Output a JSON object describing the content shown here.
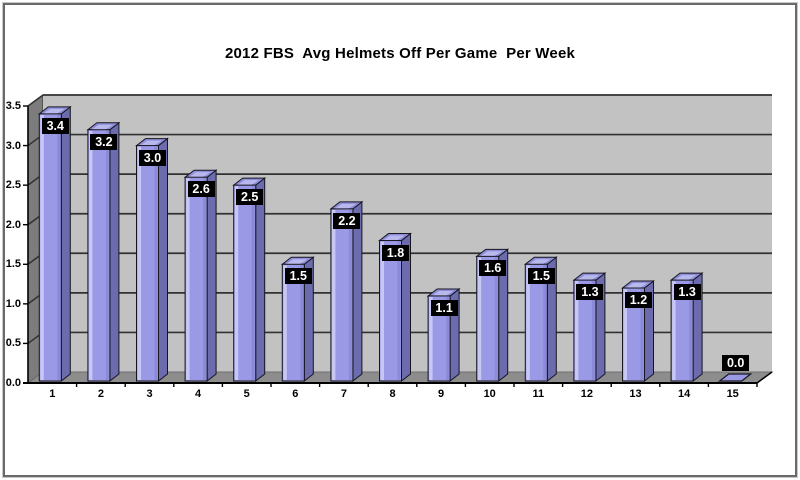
{
  "chart_data": {
    "type": "bar",
    "projection": "3d",
    "title": "2012 FBS  Avg Helmets Off Per Game  Per Week",
    "categories": [
      "1",
      "2",
      "3",
      "4",
      "5",
      "6",
      "7",
      "8",
      "9",
      "10",
      "11",
      "12",
      "13",
      "14",
      "15"
    ],
    "values": [
      3.4,
      3.2,
      3.0,
      2.6,
      2.5,
      1.5,
      2.2,
      1.8,
      1.1,
      1.6,
      1.5,
      1.3,
      1.2,
      1.3,
      0.0
    ],
    "data_labels": [
      "3.4",
      "3.2",
      "3.0",
      "2.6",
      "2.5",
      "1.5",
      "2.2",
      "1.8",
      "1.1",
      "1.6",
      "1.5",
      "1.3",
      "1.2",
      "1.3",
      "0.0"
    ],
    "xlabel": "",
    "ylabel": "",
    "ylim": [
      0,
      3.5
    ],
    "ytick_step": 0.5,
    "yticks": [
      "0.0",
      "0.5",
      "1.0",
      "1.5",
      "2.0",
      "2.5",
      "3.0",
      "3.5"
    ],
    "grid": true,
    "legend": false,
    "colors": {
      "bar_front": "#9a99e6",
      "bar_front_highlight": "#c8c7f4",
      "bar_front_shade": "#8b8ad8",
      "bar_side": "#6b6bae",
      "bar_top": "#8e8dd8",
      "bar_top_highlight": "#b9b8ec",
      "bar_outline": "#16161f",
      "back_wall": "#c2c2c2",
      "side_wall": "#7c7c7c",
      "floor": "#8d8d8d",
      "gridline": "#313131",
      "axis": "#000000",
      "data_label_bg": "#000000",
      "data_label_text": "#ffffff",
      "title_color": "#000000"
    }
  }
}
